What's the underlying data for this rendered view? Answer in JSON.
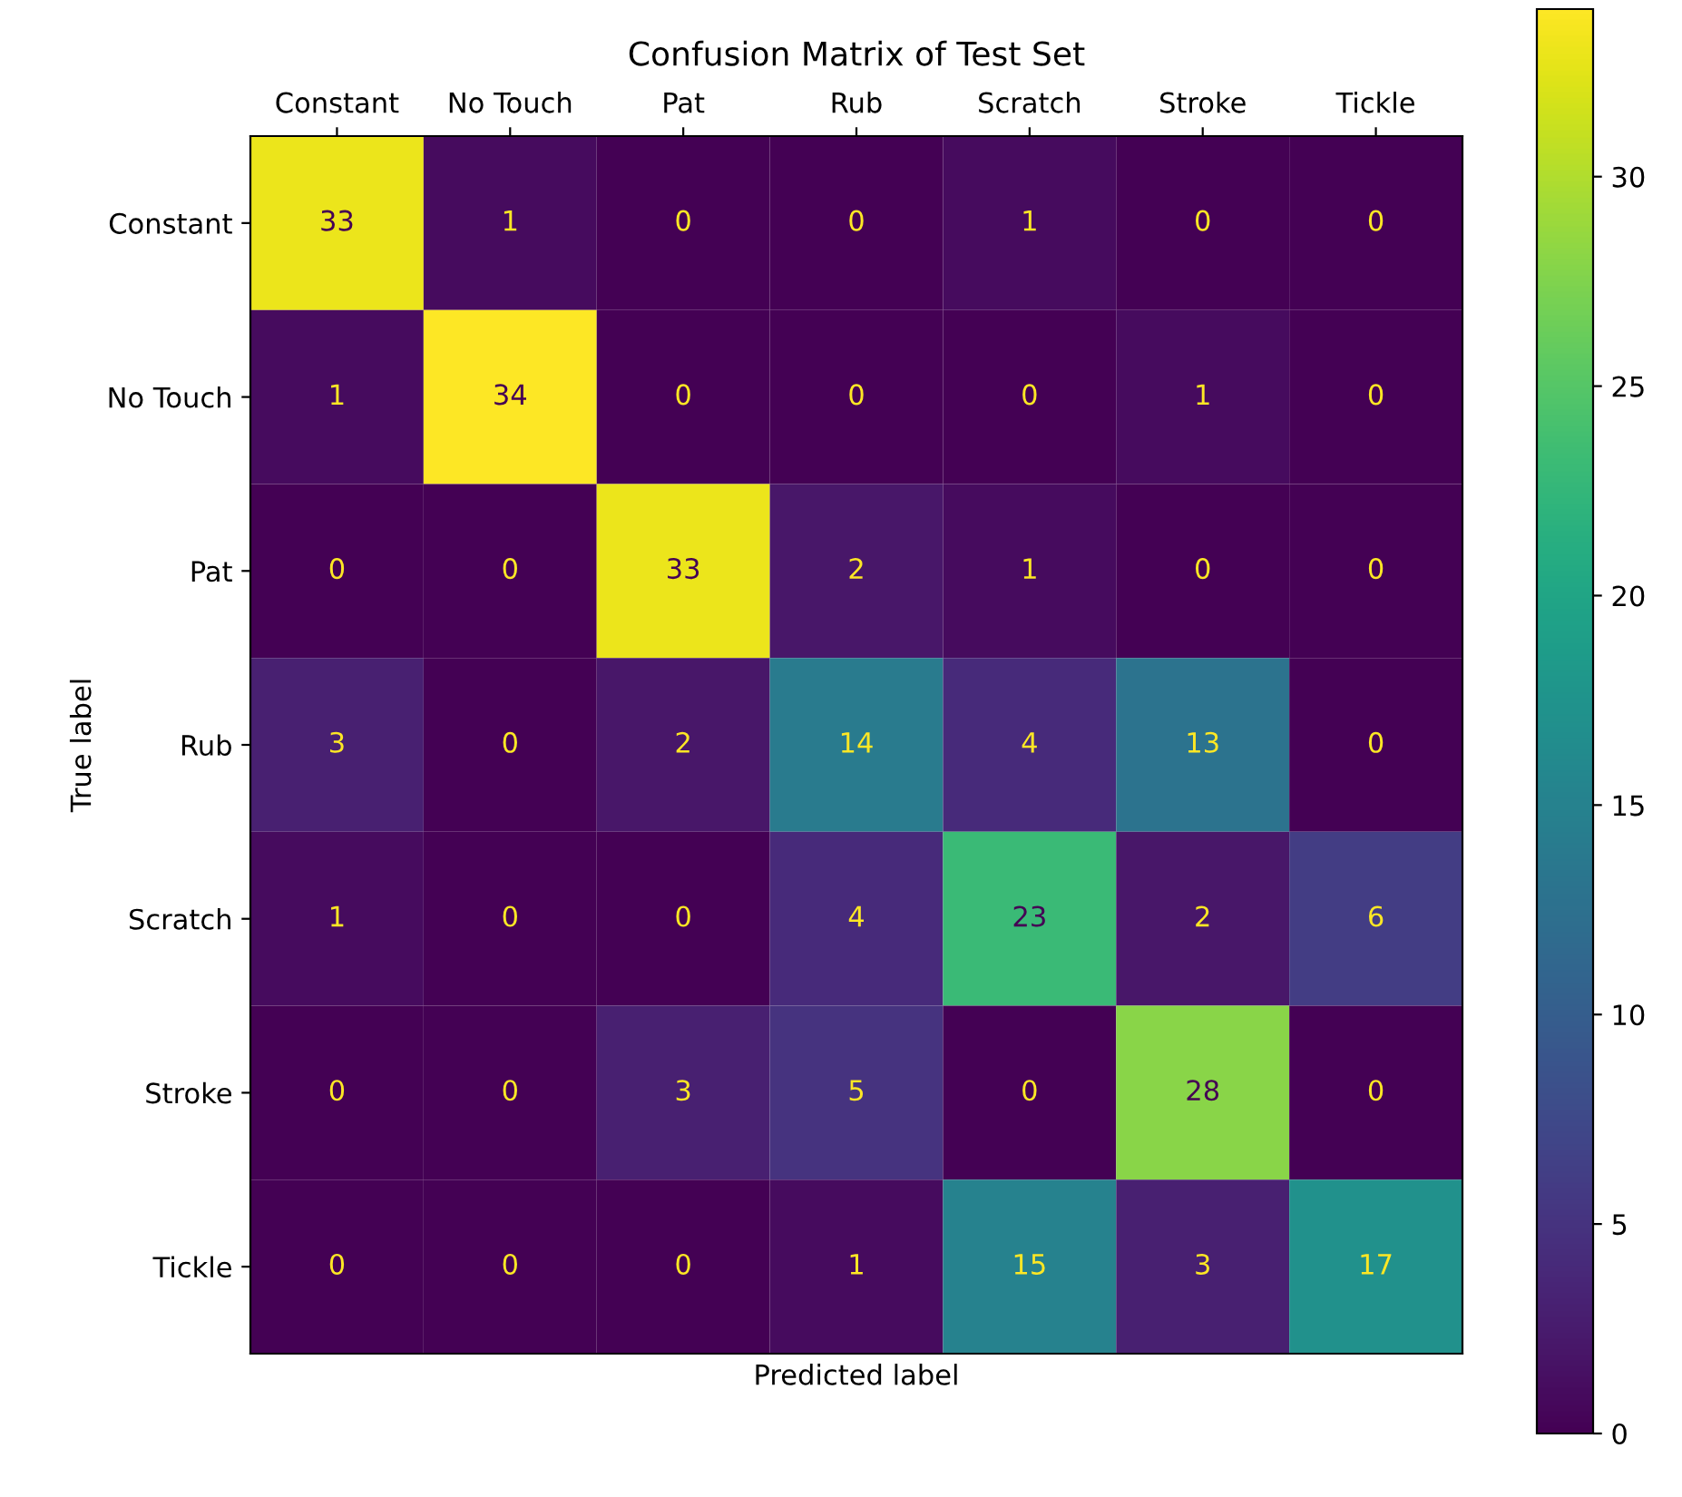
{
  "chart_data": {
    "type": "heatmap",
    "title": "Confusion Matrix of Test Set",
    "xlabel": "Predicted label",
    "ylabel": "True label",
    "categories": [
      "Constant",
      "No Touch",
      "Pat",
      "Rub",
      "Scratch",
      "Stroke",
      "Tickle"
    ],
    "y_categories": [
      "Constant",
      "No Touch",
      "Pat",
      "Rub",
      "Scratch",
      "Stroke",
      "Tickle"
    ],
    "cells": [
      [
        33,
        1,
        0,
        0,
        1,
        0,
        0
      ],
      [
        1,
        34,
        0,
        0,
        0,
        1,
        0
      ],
      [
        0,
        0,
        33,
        2,
        1,
        0,
        0
      ],
      [
        3,
        0,
        2,
        14,
        4,
        13,
        0
      ],
      [
        1,
        0,
        0,
        4,
        23,
        2,
        6
      ],
      [
        0,
        0,
        3,
        5,
        0,
        28,
        0
      ],
      [
        0,
        0,
        0,
        1,
        15,
        3,
        17
      ]
    ],
    "clim": [
      0,
      34
    ],
    "cticks": [
      0,
      5,
      10,
      15,
      20,
      25,
      30
    ],
    "data_labels": true
  }
}
